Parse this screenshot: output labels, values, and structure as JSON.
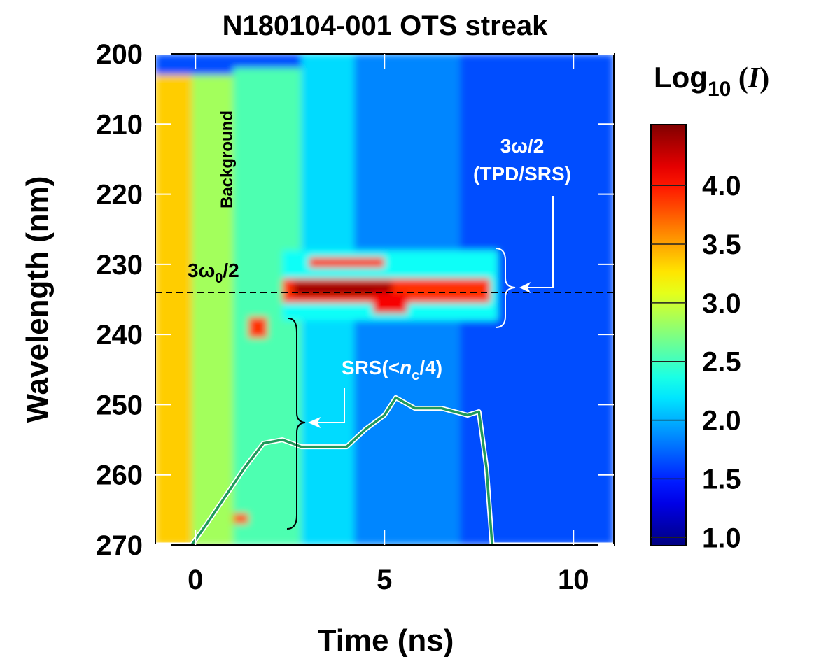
{
  "chart_data": {
    "type": "heatmap",
    "title": "N180104-001 OTS streak",
    "x_label": "Time (ns)",
    "y_label": "Wavelength (nm)",
    "xlim": [
      -1.06,
      11.07
    ],
    "ylim": [
      200,
      270
    ],
    "y_inverted": true,
    "xticks": [
      0,
      5,
      10
    ],
    "yticks": [
      200,
      210,
      220,
      230,
      240,
      250,
      260,
      270
    ],
    "regions": [
      {
        "x": [
          -1.06,
          11.07
        ],
        "y": [
          200,
          270
        ],
        "value": 1.65
      },
      {
        "x": [
          4.0,
          7.0
        ],
        "y": [
          200,
          270
        ],
        "value": 1.85
      },
      {
        "x": [
          2.8,
          4.2
        ],
        "y": [
          200,
          270
        ],
        "value": 2.15
      },
      {
        "x": [
          1.0,
          2.8
        ],
        "y": [
          202,
          270
        ],
        "value": 2.55
      },
      {
        "x": [
          -0.1,
          1.0
        ],
        "y": [
          203,
          270
        ],
        "value": 2.85
      },
      {
        "x": [
          -1.06,
          -0.1
        ],
        "y": [
          203,
          270
        ],
        "value": 3.35
      },
      {
        "x": [
          2.3,
          8.0
        ],
        "y": [
          228,
          238
        ],
        "value": 2.3
      },
      {
        "x": [
          2.3,
          7.8
        ],
        "y": [
          232,
          235.5
        ],
        "value": 3.9
      },
      {
        "x": [
          2.6,
          5.2
        ],
        "y": [
          232.5,
          234.5
        ],
        "value": 4.4
      },
      {
        "x": [
          4.7,
          5.6
        ],
        "y": [
          234,
          237
        ],
        "value": 4.1
      },
      {
        "x": [
          3.0,
          5.0
        ],
        "y": [
          229,
          230.5
        ],
        "value": 3.9
      },
      {
        "x": [
          1.4,
          1.9
        ],
        "y": [
          237.5,
          240.5
        ],
        "value": 3.9
      },
      {
        "x": [
          1.0,
          1.4
        ],
        "y": [
          265.5,
          267
        ],
        "value": 3.8
      }
    ],
    "trace": {
      "color": "#1f9a5a",
      "x": [
        -1.06,
        -0.1,
        0.3,
        0.8,
        1.3,
        1.8,
        2.3,
        2.8,
        3.5,
        4.0,
        4.5,
        5.0,
        5.3,
        5.8,
        6.5,
        7.2,
        7.5,
        7.7,
        7.85,
        11.07
      ],
      "values": [
        270,
        270,
        267,
        263,
        259,
        255.5,
        255,
        256,
        256,
        256,
        253.5,
        251.5,
        249,
        250.5,
        250.5,
        251.5,
        251,
        259,
        270,
        270
      ]
    },
    "reference_line": 234,
    "colorbar": {
      "title": {
        "text": "Log",
        "sub": "10",
        "tail": " (",
        "italic": "I",
        "end": ")"
      },
      "lim": [
        0.93,
        4.52
      ],
      "ticks": [
        {
          "value": 1.0,
          "label": "1.0"
        },
        {
          "value": 1.5,
          "label": "1.5"
        },
        {
          "value": 2.0,
          "label": "2.0"
        },
        {
          "value": 2.5,
          "label": "2.5"
        },
        {
          "value": 3.0,
          "label": "3.0"
        },
        {
          "value": 3.5,
          "label": "3.5"
        },
        {
          "value": 4.0,
          "label": "4.0"
        }
      ]
    },
    "annotations": {
      "background": "Background",
      "omega0": {
        "text": "3ω",
        "sub": "0",
        "tail": "/2"
      },
      "tpd1": "3ω/2",
      "tpd2": "(TPD/SRS)",
      "srs": {
        "text": "SRS(<",
        "italic": "n",
        "sub": "c",
        "tail": "/4)"
      }
    }
  }
}
